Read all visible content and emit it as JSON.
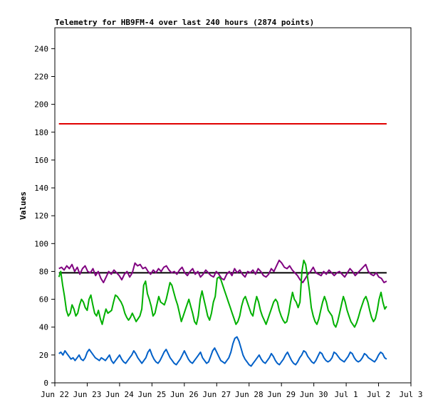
{
  "chart_data": {
    "type": "line",
    "title": "Telemetry for HB9FM-4 over last 240 hours (2874 points)",
    "xlabel": "",
    "ylabel": "Values",
    "x_tick_labels": [
      "Jun 22",
      "Jun 23",
      "Jun 24",
      "Jun 25",
      "Jun 26",
      "Jun 27",
      "Jun 28",
      "Jun 29",
      "Jun 30",
      "Jul 1",
      "Jul 2",
      "Jul 3"
    ],
    "xlim": [
      "2023-06-22T00:00",
      "2023-07-03T00:00"
    ],
    "ylim": [
      0,
      255
    ],
    "y_ticks": [
      0,
      20,
      40,
      60,
      80,
      100,
      120,
      140,
      160,
      180,
      200,
      220,
      240
    ],
    "grid": false,
    "series": [
      {
        "color": "#e00000",
        "x_start": "2023-06-22T03:00",
        "x_end": "2023-07-02T06:00",
        "values": [
          186,
          186
        ]
      },
      {
        "color": "#000000",
        "x_start": "2023-06-22T03:00",
        "x_end": "2023-07-02T06:00",
        "values": [
          79,
          79
        ]
      },
      {
        "color": "#800080",
        "x_start": "2023-06-22T03:00",
        "x_end": "2023-07-02T06:00",
        "values": [
          82,
          83,
          81,
          84,
          82,
          85,
          80,
          83,
          78,
          82,
          84,
          80,
          79,
          82,
          77,
          80,
          75,
          72,
          76,
          80,
          78,
          81,
          79,
          77,
          74,
          78,
          80,
          76,
          79,
          86,
          84,
          85,
          82,
          83,
          80,
          78,
          81,
          79,
          82,
          80,
          83,
          84,
          81,
          79,
          80,
          78,
          81,
          83,
          79,
          77,
          80,
          82,
          78,
          80,
          76,
          78,
          81,
          79,
          77,
          76,
          80,
          78,
          75,
          74,
          78,
          80,
          77,
          82,
          79,
          81,
          78,
          76,
          80,
          79,
          81,
          78,
          82,
          80,
          77,
          76,
          78,
          82,
          80,
          84,
          88,
          86,
          83,
          82,
          84,
          81,
          79,
          77,
          74,
          72,
          75,
          78,
          80,
          83,
          79,
          78,
          77,
          80,
          78,
          81,
          79,
          77,
          79,
          80,
          78,
          76,
          79,
          82,
          80,
          77,
          79,
          81,
          83,
          85,
          80,
          78,
          77,
          79,
          76,
          75,
          72,
          73
        ]
      },
      {
        "color": "#00b000",
        "x_start": "2023-06-22T03:00",
        "x_end": "2023-07-02T06:00",
        "values": [
          76,
          80,
          70,
          62,
          52,
          48,
          50,
          56,
          53,
          48,
          50,
          56,
          60,
          58,
          54,
          52,
          60,
          63,
          56,
          50,
          48,
          52,
          46,
          42,
          48,
          53,
          50,
          51,
          52,
          58,
          63,
          62,
          60,
          58,
          55,
          50,
          47,
          45,
          47,
          50,
          47,
          44,
          46,
          48,
          53,
          70,
          73,
          64,
          60,
          55,
          48,
          50,
          56,
          62,
          58,
          57,
          56,
          60,
          66,
          72,
          70,
          65,
          60,
          56,
          50,
          44,
          48,
          52,
          56,
          60,
          55,
          50,
          44,
          42,
          48,
          60,
          66,
          60,
          54,
          48,
          45,
          50,
          58,
          62,
          75,
          76,
          74,
          70,
          66,
          62,
          58,
          54,
          50,
          46,
          42,
          44,
          48,
          55,
          60,
          62,
          58,
          54,
          50,
          48,
          56,
          62,
          58,
          52,
          48,
          45,
          42,
          46,
          50,
          54,
          58,
          60,
          58,
          52,
          48,
          45,
          43,
          44,
          50,
          58,
          65,
          60,
          58,
          54,
          58,
          80,
          88,
          85,
          76,
          66,
          54,
          48,
          44,
          42,
          46,
          52,
          58,
          62,
          58,
          52,
          50,
          48,
          42,
          40,
          44,
          50,
          56,
          62,
          58,
          52,
          48,
          44,
          42,
          40,
          43,
          47,
          52,
          56,
          60,
          62,
          58,
          52,
          47,
          44,
          46,
          52,
          60,
          65,
          58,
          53,
          55
        ]
      },
      {
        "color": "#0060c8",
        "x_start": "2023-06-22T03:00",
        "x_end": "2023-07-02T06:00",
        "values": [
          21,
          22,
          20,
          23,
          21,
          19,
          17,
          18,
          16,
          18,
          20,
          17,
          16,
          18,
          22,
          24,
          22,
          20,
          18,
          17,
          16,
          18,
          17,
          16,
          18,
          20,
          16,
          14,
          16,
          18,
          20,
          17,
          15,
          14,
          16,
          18,
          20,
          23,
          21,
          18,
          16,
          14,
          16,
          18,
          22,
          24,
          20,
          17,
          15,
          14,
          16,
          19,
          22,
          24,
          21,
          18,
          16,
          14,
          13,
          15,
          17,
          20,
          23,
          20,
          17,
          15,
          14,
          16,
          18,
          20,
          22,
          18,
          16,
          14,
          15,
          19,
          23,
          25,
          22,
          19,
          16,
          15,
          14,
          16,
          18,
          22,
          28,
          32,
          33,
          30,
          25,
          20,
          17,
          15,
          13,
          12,
          14,
          16,
          18,
          20,
          17,
          15,
          14,
          16,
          18,
          21,
          19,
          16,
          14,
          13,
          15,
          17,
          20,
          22,
          19,
          16,
          14,
          13,
          15,
          18,
          20,
          23,
          22,
          19,
          17,
          15,
          14,
          16,
          19,
          22,
          21,
          18,
          16,
          15,
          16,
          18,
          22,
          21,
          19,
          17,
          16,
          15,
          17,
          19,
          22,
          21,
          18,
          16,
          15,
          16,
          18,
          21,
          20,
          18,
          17,
          16,
          15,
          17,
          20,
          22,
          21,
          18,
          17
        ]
      }
    ]
  }
}
